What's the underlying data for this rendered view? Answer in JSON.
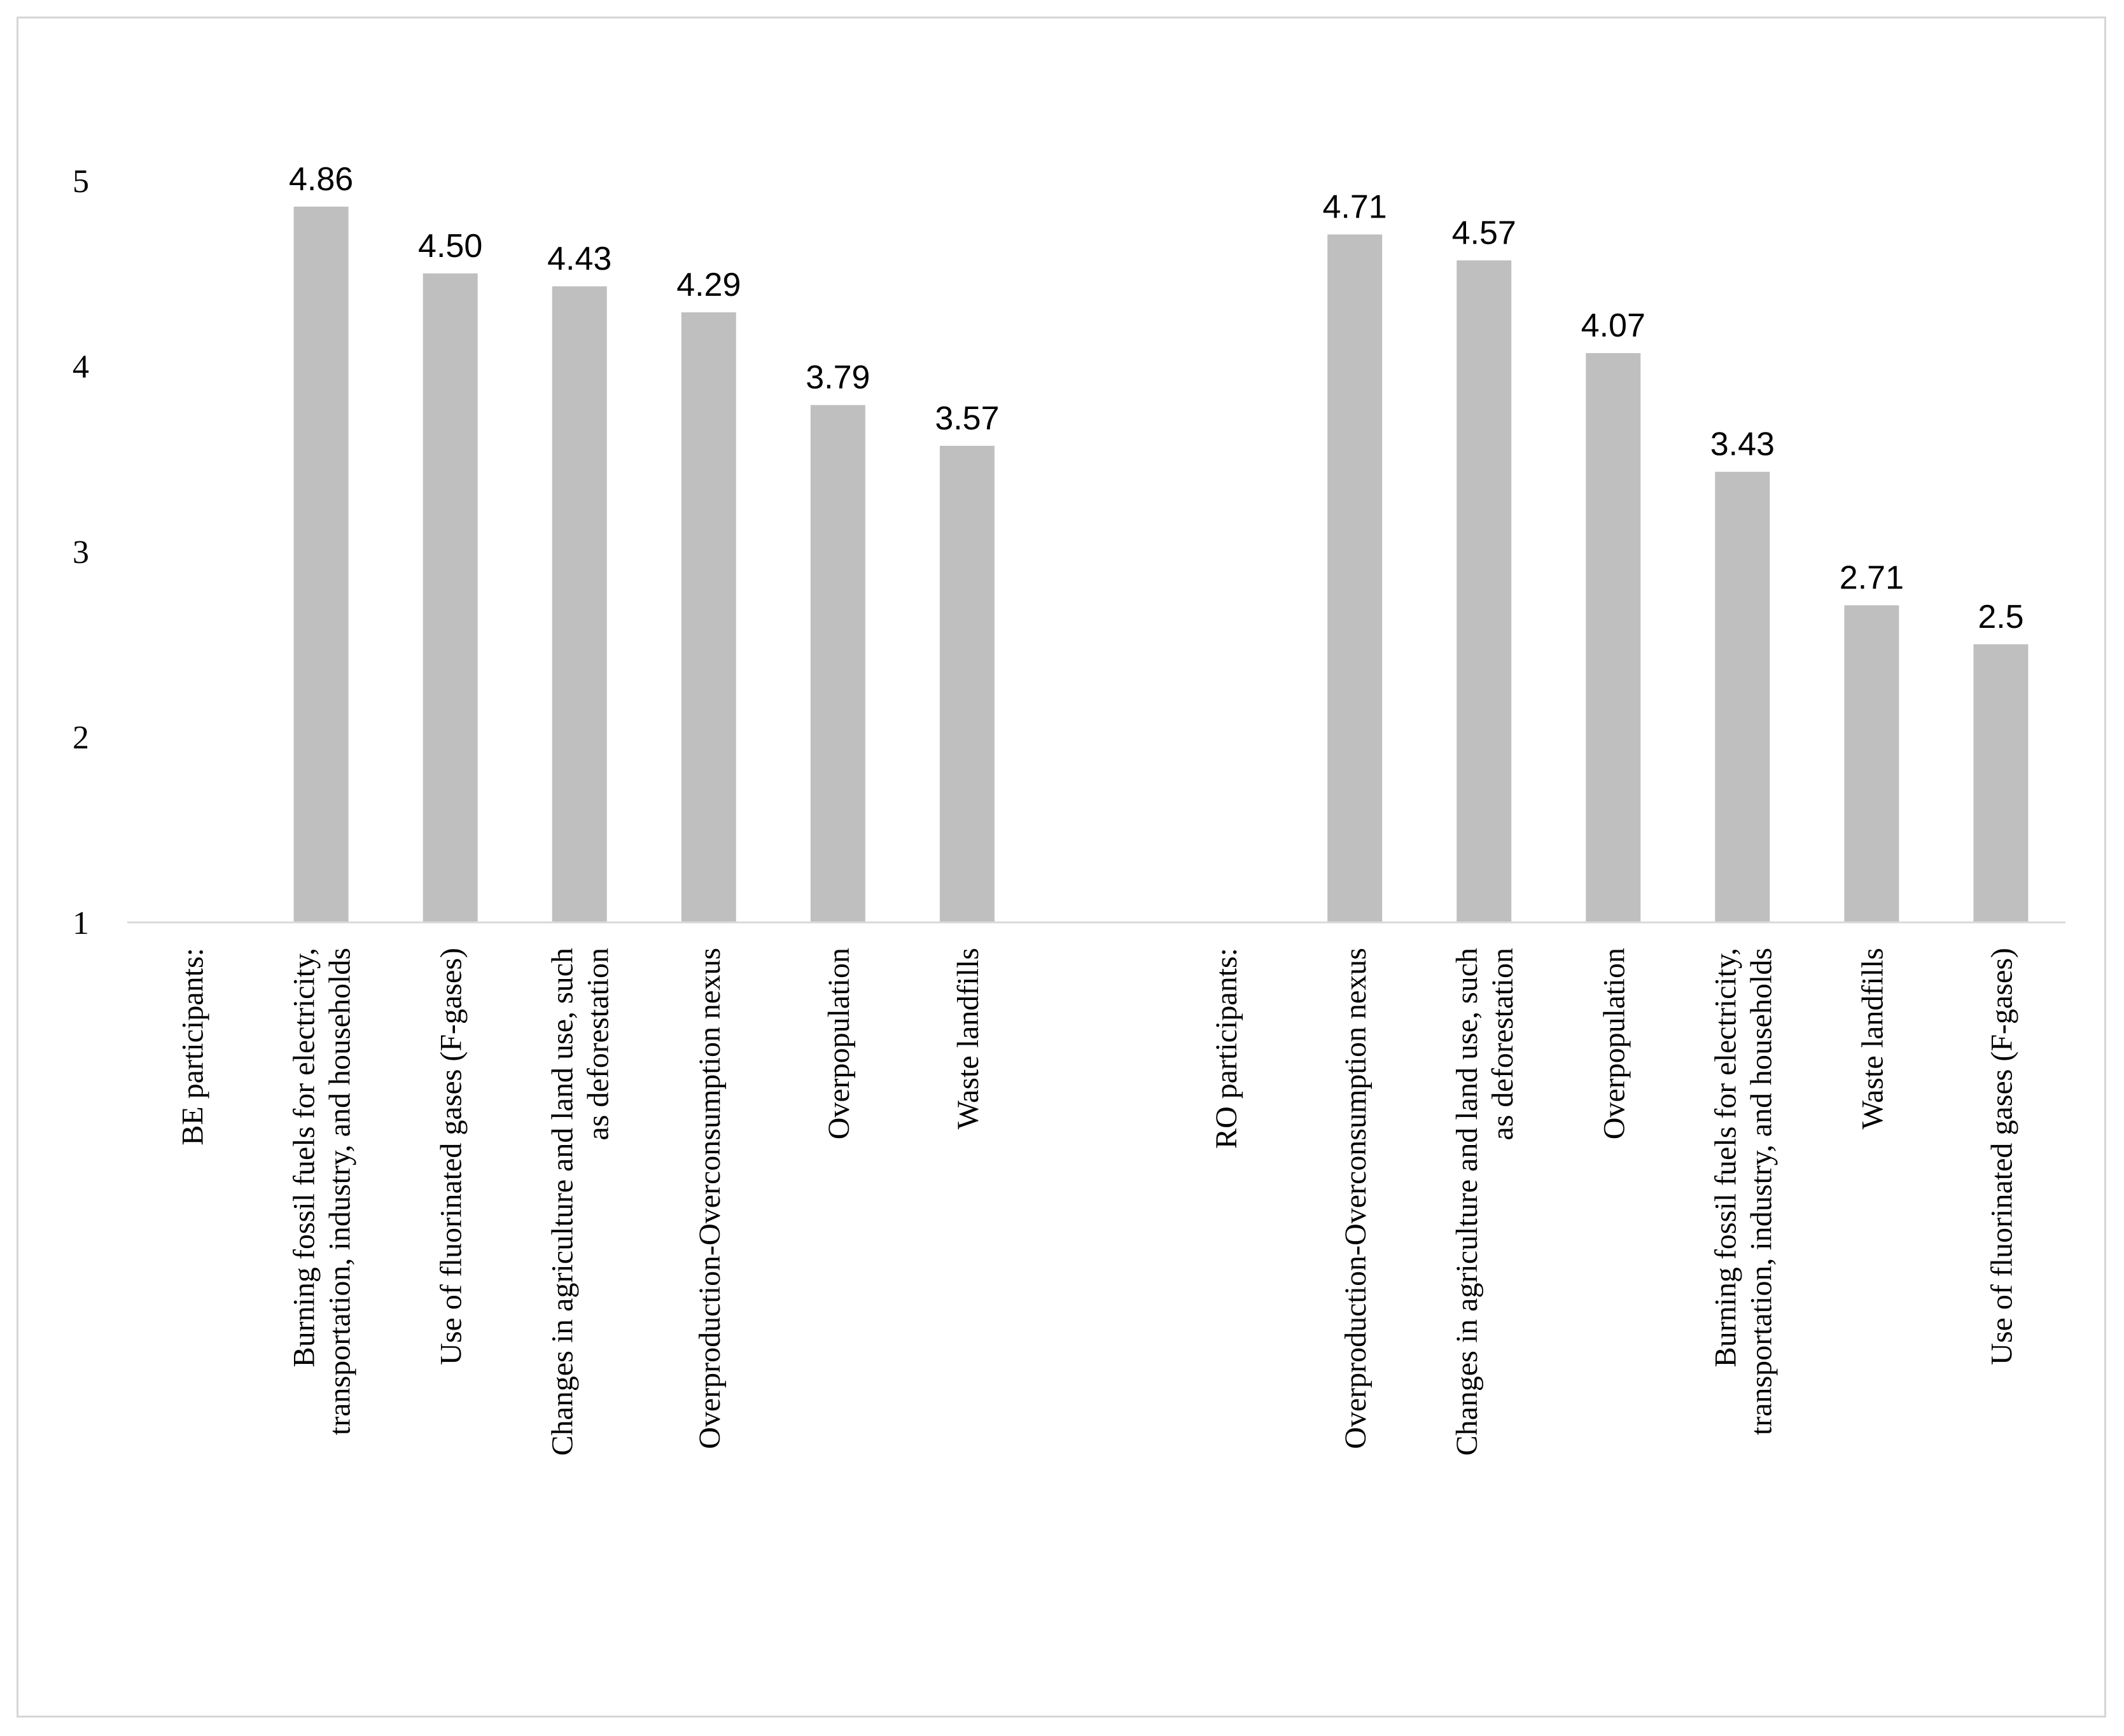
{
  "chart_data": {
    "type": "bar",
    "title": "",
    "xlabel": "",
    "ylabel": "",
    "ylim": [
      1,
      5
    ],
    "yticks": [
      1,
      2,
      3,
      4,
      5
    ],
    "grid": false,
    "legend": "none",
    "colors": {
      "bar": "#bfbfbf",
      "axis": "#d9d9d9",
      "frame": "#d6d6d6"
    },
    "categories": [
      [
        "BE participants:"
      ],
      [
        "Burning fossil fuels for electricity,",
        "transportation, industry, and households"
      ],
      [
        "Use of fluorinated gases (F-gases)"
      ],
      [
        "Changes in agriculture and land use, such",
        "as deforestation"
      ],
      [
        "Overproduction-Overconsumption nexus"
      ],
      [
        "Overpopulation"
      ],
      [
        "Waste landfills"
      ],
      [
        ""
      ],
      [
        "RO participants:"
      ],
      [
        "Overproduction-Overconsumption nexus"
      ],
      [
        "Changes in agriculture and land use, such",
        "as deforestation"
      ],
      [
        "Overpopulation"
      ],
      [
        "Burning fossil fuels for electricity,",
        "transportation, industry, and households"
      ],
      [
        "Waste landfills"
      ],
      [
        "Use of fluorinated gases (F-gases)"
      ]
    ],
    "values": [
      null,
      4.86,
      4.5,
      4.43,
      4.29,
      3.79,
      3.57,
      null,
      null,
      4.71,
      4.57,
      4.07,
      3.43,
      2.71,
      2.5
    ],
    "data_labels": [
      "",
      "4.86",
      "4.50",
      "4.43",
      "4.29",
      "3.79",
      "3.57",
      "",
      "",
      "4.71",
      "4.57",
      "4.07",
      "3.43",
      "2.71",
      "2.5"
    ]
  }
}
